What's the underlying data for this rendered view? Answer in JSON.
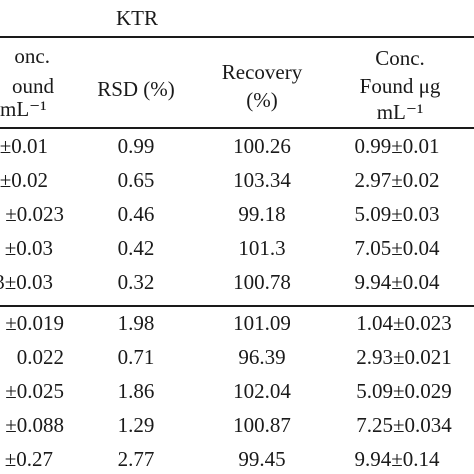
{
  "caption": "KTR",
  "headers": {
    "col1": [
      "onc.",
      "ound",
      "mL⁻¹"
    ],
    "col2": "RSD (%)",
    "col3": [
      "Recovery",
      "(%)"
    ],
    "col4": [
      "Conc.",
      "Found μg",
      "mL⁻¹"
    ]
  },
  "rows": [
    {
      "c1": "±0.01",
      "c2": "0.99",
      "c3": "100.26",
      "c4": "0.99±0.01"
    },
    {
      "c1": "±0.02",
      "c2": "0.65",
      "c3": "103.34",
      "c4": "2.97±0.02"
    },
    {
      "c1": "±0.023",
      "c2": "0.46",
      "c3": "99.18",
      "c4": "5.09±0.03"
    },
    {
      "c1": "±0.03",
      "c2": "0.42",
      "c3": "101.3",
      "c4": "7.05±0.04"
    },
    {
      "c1": "3±0.03",
      "c2": "0.32",
      "c3": "100.78",
      "c4": "9.94±0.04"
    },
    {
      "c1": "±0.019",
      "c2": "1.98",
      "c3": "101.09",
      "c4": "1.04±0.023"
    },
    {
      "c1": "0.022",
      "c2": "0.71",
      "c3": "96.39",
      "c4": "2.93±0.021"
    },
    {
      "c1": "±0.025",
      "c2": "1.86",
      "c3": "102.04",
      "c4": "5.09±0.029"
    },
    {
      "c1": "±0.088",
      "c2": "1.29",
      "c3": "100.87",
      "c4": "7.25±0.034"
    },
    {
      "c1": "±0.27",
      "c2": "2.77",
      "c3": "99.45",
      "c4": "9.94±0.14"
    }
  ]
}
